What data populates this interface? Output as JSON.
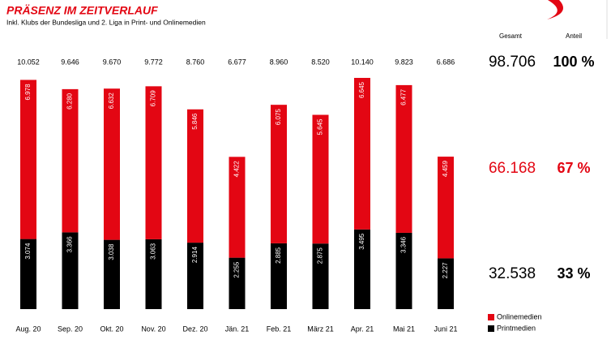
{
  "chart_data": {
    "type": "stacked-bar",
    "title": "PRÄSENZ IM ZEITVERLAUF",
    "subtitle": "Inkl. Klubs der Bundesliga und 2. Liga in Print- und Onlinemedien",
    "categories": [
      "Aug. 20",
      "Sep. 20",
      "Okt. 20",
      "Nov. 20",
      "Dez. 20",
      "Jän. 21",
      "Feb. 21",
      "März 21",
      "Apr. 21",
      "Mai 21",
      "Juni 21"
    ],
    "series": [
      {
        "name": "Printmedien",
        "color": "#000000",
        "values": [
          3074,
          3366,
          3038,
          3063,
          2914,
          2255,
          2885,
          2875,
          3495,
          3346,
          2227
        ],
        "value_labels": [
          "3.074",
          "3.366",
          "3.038",
          "3.063",
          "2.914",
          "2.255",
          "2.885",
          "2.875",
          "3.495",
          "3.346",
          "2.227"
        ]
      },
      {
        "name": "Onlinemedien",
        "color": "#e30613",
        "values": [
          6978,
          6280,
          6632,
          6709,
          5846,
          4422,
          6075,
          5645,
          6645,
          6477,
          4459
        ],
        "value_labels": [
          "6.978",
          "6.280",
          "6.632",
          "6.709",
          "5.846",
          "4.422",
          "6.075",
          "5.645",
          "6.645",
          "6.477",
          "4.459"
        ]
      }
    ],
    "totals": {
      "values": [
        10052,
        9646,
        9670,
        9772,
        8760,
        6677,
        8960,
        8520,
        10140,
        9823,
        6686
      ],
      "value_labels": [
        "10.052",
        "9.646",
        "9.670",
        "9.772",
        "8.760",
        "6.677",
        "8.960",
        "8.520",
        "10.140",
        "9.823",
        "6.686"
      ]
    },
    "summary": {
      "headers": [
        "Gesamt",
        "Anteil"
      ],
      "values": [
        98706,
        66168,
        32538
      ],
      "value_labels": [
        "98.706",
        "66.168",
        "32.538"
      ],
      "shares": [
        100,
        67,
        33
      ],
      "share_labels": [
        "100 %",
        "67 %",
        "33 %"
      ],
      "colors": [
        "#000000",
        "#e30613",
        "#000000"
      ]
    }
  }
}
